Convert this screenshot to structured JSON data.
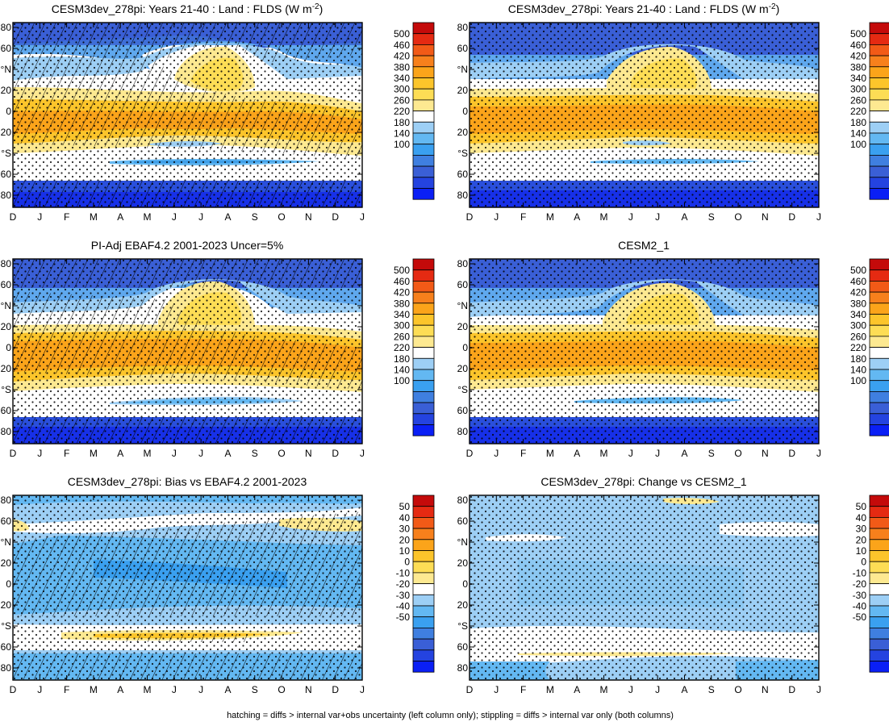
{
  "caption": "hatching = diffs > internal var+obs uncertainty (left column only); stippling = diffs > internal var only (both columns)",
  "month_labels": [
    "D",
    "J",
    "F",
    "M",
    "A",
    "M",
    "J",
    "J",
    "A",
    "S",
    "O",
    "N",
    "D",
    "J"
  ],
  "lat_labels": [
    "80",
    "60",
    "°N",
    "20",
    "0",
    "20",
    "°S",
    "60",
    "80"
  ],
  "colorbars": {
    "abs": [
      "500",
      "460",
      "420",
      "380",
      "340",
      "300",
      "260",
      "220",
      "180",
      "140",
      "100"
    ],
    "diff": [
      "50",
      "40",
      "30",
      "20",
      "10",
      "0",
      "-10",
      "-20",
      "-30",
      "-40",
      "-50"
    ]
  },
  "colors": {
    "abs_palette": [
      "#0a1ff5",
      "#2443e0",
      "#3a5fd6",
      "#3f7fe0",
      "#3aa0f0",
      "#63b8f2",
      "#9dcff5",
      "#ffffff",
      "#fde991",
      "#fddd55",
      "#fcc52b",
      "#fba41a",
      "#f7801c",
      "#f25a17",
      "#e52a12",
      "#c40a0a"
    ]
  },
  "chart_data": [
    {
      "type": "heatmap",
      "title_main": "CESM3dev_278pi: Years 21-40 : Land : FLDS (W m",
      "title_sup": "-2",
      "title_end": ")",
      "hatched": true,
      "stippled": true,
      "scale": "abs"
    },
    {
      "type": "heatmap",
      "title_main": "CESM3dev_278pi: Years 21-40 : Land : FLDS (W m",
      "title_sup": "-2",
      "title_end": ")",
      "hatched": false,
      "stippled": true,
      "scale": "abs"
    },
    {
      "type": "heatmap",
      "title_main": "PI-Adj EBAF4.2 2001-2023 Uncer=5%",
      "title_sup": "",
      "title_end": "",
      "hatched": true,
      "stippled": true,
      "scale": "abs"
    },
    {
      "type": "heatmap",
      "title_main": "CESM2_1",
      "title_sup": "",
      "title_end": "",
      "hatched": false,
      "stippled": true,
      "scale": "abs"
    },
    {
      "type": "heatmap",
      "title_main": "CESM3dev_278pi: Bias vs EBAF4.2 2001-2023",
      "title_sup": "",
      "title_end": "",
      "hatched": true,
      "stippled": true,
      "scale": "diff"
    },
    {
      "type": "heatmap",
      "title_main": "CESM3dev_278pi: Change vs CESM2_1",
      "title_sup": "",
      "title_end": "",
      "hatched": false,
      "stippled": true,
      "scale": "diff"
    }
  ]
}
